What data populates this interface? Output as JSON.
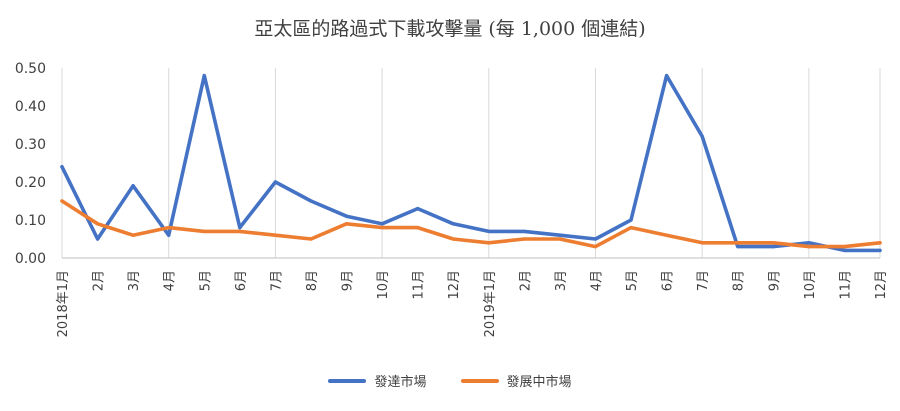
{
  "chart_data": {
    "type": "line",
    "title": "亞太區的路過式下載攻擊量 (每 1,000 個連結)",
    "xlabel": "",
    "ylabel": "",
    "categories": [
      "2018年1月",
      "2月",
      "3月",
      "4月",
      "5月",
      "6月",
      "7月",
      "8月",
      "9月",
      "10月",
      "11月",
      "12月",
      "2019年1月",
      "2月",
      "3月",
      "4月",
      "5月",
      "6月",
      "7月",
      "8月",
      "9月",
      "10月",
      "11月",
      "12月"
    ],
    "y_ticks": [
      "0.00",
      "0.10",
      "0.20",
      "0.30",
      "0.40",
      "0.50"
    ],
    "ylim": [
      0,
      0.5
    ],
    "grid": "vertical",
    "legend_position": "bottom",
    "series": [
      {
        "name": "發達市場",
        "color": "#4472c4",
        "values": [
          0.24,
          0.05,
          0.19,
          0.06,
          0.48,
          0.08,
          0.2,
          0.15,
          0.11,
          0.09,
          0.13,
          0.09,
          0.07,
          0.07,
          0.06,
          0.05,
          0.1,
          0.48,
          0.32,
          0.03,
          0.03,
          0.04,
          0.02,
          0.02
        ]
      },
      {
        "name": "發展中市場",
        "color": "#ed7d31",
        "values": [
          0.15,
          0.09,
          0.06,
          0.08,
          0.07,
          0.07,
          0.06,
          0.05,
          0.09,
          0.08,
          0.08,
          0.05,
          0.04,
          0.05,
          0.05,
          0.03,
          0.08,
          0.06,
          0.04,
          0.04,
          0.04,
          0.03,
          0.03,
          0.04
        ]
      }
    ]
  }
}
